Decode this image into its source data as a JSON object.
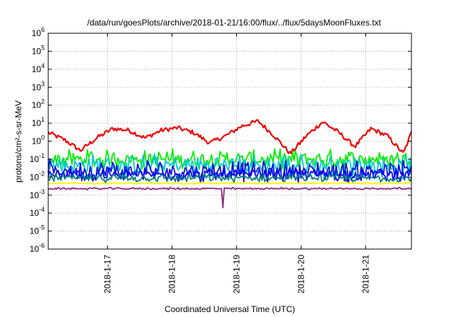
{
  "chart_data": {
    "type": "line",
    "title": "/data/run/goesPlots/archive/2018-01-21/16:00/flux/../flux/5daysMoonFluxes.txt",
    "xlabel": "Coordinated Universal Time (UTC)",
    "ylabel": "protons/cm²-s-sr-MeV",
    "y_scale": "log",
    "ylim": [
      1e-06,
      1000000.0
    ],
    "xlim": [
      "2018-01-16T02:00",
      "2018-01-21T17:00"
    ],
    "grid": true,
    "legend": "none",
    "x_ticks": [
      "2018-1-17",
      "2018-1-18",
      "2018-1-19",
      "2018-1-20",
      "2018-1-21"
    ],
    "y_ticks": [
      {
        "base": "10",
        "exp": "-6"
      },
      {
        "base": "10",
        "exp": "-5"
      },
      {
        "base": "10",
        "exp": "-4"
      },
      {
        "base": "10",
        "exp": "-3"
      },
      {
        "base": "10",
        "exp": "-2"
      },
      {
        "base": "10",
        "exp": "-1"
      },
      {
        "base": "10",
        "exp": "0"
      },
      {
        "base": "10",
        "exp": "1"
      },
      {
        "base": "10",
        "exp": "2"
      },
      {
        "base": "10",
        "exp": "3"
      },
      {
        "base": "10",
        "exp": "4"
      },
      {
        "base": "10",
        "exp": "5"
      },
      {
        "base": "10",
        "exp": "6"
      }
    ],
    "series": [
      {
        "color": "#ee0000",
        "baseline": 1.5,
        "noise": 0.25,
        "x": [
          "2018-01-16T02:00",
          "2018-01-16T08:00",
          "2018-01-16T14:00",
          "2018-01-16T20:00",
          "2018-01-17T02:00",
          "2018-01-17T08:00",
          "2018-01-17T14:00",
          "2018-01-17T20:00",
          "2018-01-18T02:00",
          "2018-01-18T08:00",
          "2018-01-18T14:00",
          "2018-01-18T20:00",
          "2018-01-19T02:00",
          "2018-01-19T08:00",
          "2018-01-19T14:00",
          "2018-01-19T20:00",
          "2018-01-20T02:00",
          "2018-01-20T08:00",
          "2018-01-20T14:00",
          "2018-01-20T20:00",
          "2018-01-21T02:00",
          "2018-01-21T08:00",
          "2018-01-21T14:00",
          "2018-01-21T17:00"
        ],
        "values": [
          3,
          1.2,
          0.3,
          1.5,
          5,
          4,
          1.5,
          4,
          5.5,
          3,
          0.8,
          2,
          7,
          13,
          2,
          0.2,
          2,
          12,
          3,
          0.5,
          5,
          2,
          0.2,
          3
        ]
      },
      {
        "color": "#00ee00",
        "baseline": 0.1,
        "noise": 0.45
      },
      {
        "color": "#00cccc",
        "baseline": 0.045,
        "noise": 0.5
      },
      {
        "color": "#1010dd",
        "baseline": 0.022,
        "noise": 0.5
      },
      {
        "color": "#0000ff",
        "baseline": 0.014,
        "noise": 0.3
      },
      {
        "color": "#008080",
        "baseline": 0.009,
        "noise": 0.2
      },
      {
        "color": "#ffff00",
        "baseline": 0.0045,
        "noise": 0.04
      },
      {
        "color": "#8b2a7a",
        "baseline": 0.0023,
        "noise": 0.05,
        "dips": [
          {
            "x": "2018-01-18T19:00",
            "value": 0.0002
          }
        ]
      }
    ]
  }
}
